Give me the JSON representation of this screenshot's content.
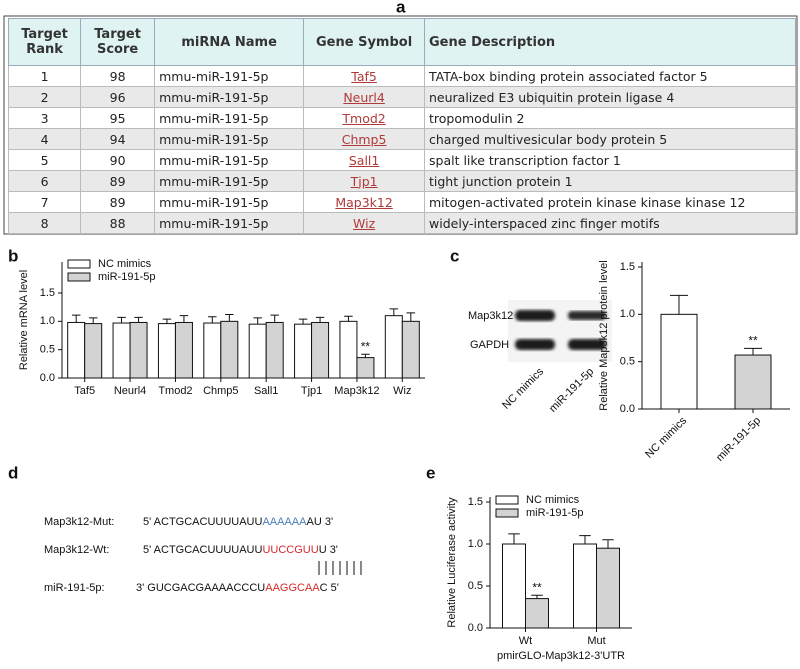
{
  "panel_labels": [
    "a",
    "b",
    "c",
    "d",
    "e"
  ],
  "table": {
    "header": [
      "Target Rank",
      "Target Score",
      "miRNA Name",
      "Gene Symbol",
      "Gene Description"
    ],
    "rows": [
      [
        1,
        98,
        "mmu-miR-191-5p",
        "Taf5",
        "TATA-box binding protein associated factor 5"
      ],
      [
        2,
        96,
        "mmu-miR-191-5p",
        "Neurl4",
        "neuralized E3 ubiquitin protein ligase 4"
      ],
      [
        3,
        95,
        "mmu-miR-191-5p",
        "Tmod2",
        "tropomodulin 2"
      ],
      [
        4,
        94,
        "mmu-miR-191-5p",
        "Chmp5",
        "charged multivesicular body protein 5"
      ],
      [
        5,
        90,
        "mmu-miR-191-5p",
        "Sall1",
        "spalt like transcription factor 1"
      ],
      [
        6,
        89,
        "mmu-miR-191-5p",
        "Tjp1",
        "tight junction protein 1"
      ],
      [
        7,
        89,
        "mmu-miR-191-5p",
        "Map3k12",
        "mitogen-activated protein kinase kinase kinase 12"
      ],
      [
        8,
        88,
        "mmu-miR-191-5p",
        "Wiz",
        "widely-interspaced zinc finger motifs"
      ]
    ]
  },
  "chart_data": [
    {
      "type": "bar",
      "ylabel": "Relative mRNA level",
      "categories": [
        "Taf5",
        "Neurl4",
        "Tmod2",
        "Chmp5",
        "Sall1",
        "Tjp1",
        "Map3k12",
        "Wiz"
      ],
      "series": [
        {
          "name": "NC mimics",
          "color": "#ffffff",
          "values": [
            0.98,
            0.97,
            0.96,
            0.97,
            0.95,
            0.95,
            1.0,
            1.1
          ],
          "errors": [
            0.13,
            0.1,
            0.08,
            0.11,
            0.11,
            0.09,
            0.09,
            0.12
          ]
        },
        {
          "name": "miR-191-5p",
          "color": "#d3d3d3",
          "values": [
            0.96,
            0.98,
            0.98,
            1.0,
            0.98,
            0.98,
            0.36,
            1.0
          ],
          "errors": [
            0.1,
            0.09,
            0.12,
            0.12,
            0.13,
            0.09,
            0.06,
            0.15
          ],
          "significance": [
            null,
            null,
            null,
            null,
            null,
            null,
            "**",
            null
          ]
        }
      ],
      "ylim": [
        0,
        1.5
      ],
      "yticks": [
        {
          "value": 0,
          "label": "0.0"
        },
        {
          "value": 0.5,
          "label": "0.5"
        },
        {
          "value": 1,
          "label": "1.0"
        },
        {
          "value": 1.5,
          "label": "1.5"
        }
      ]
    },
    {
      "type": "bar",
      "ylabel": "Relative Map3k12 protein level",
      "categories": [
        "NC mimics",
        "miR-191-5p"
      ],
      "series": [
        {
          "colors": [
            "#ffffff",
            "#d3d3d3"
          ],
          "values": [
            1.0,
            0.57
          ],
          "errors": [
            0.2,
            0.07
          ],
          "significance": [
            null,
            "**"
          ]
        }
      ],
      "ylim": [
        0,
        1.5
      ],
      "yticks": [
        {
          "value": 0,
          "label": "0.0"
        },
        {
          "value": 0.5,
          "label": "0.5"
        },
        {
          "value": 1,
          "label": "1.0"
        },
        {
          "value": 1.5,
          "label": "1.5"
        }
      ]
    },
    {
      "type": "bar",
      "ylabel": "Relative Luciferase activity",
      "xlabel": "pmirGLO-Map3k12-3'UTR",
      "categories": [
        "Wt",
        "Mut"
      ],
      "series": [
        {
          "name": "NC mimics",
          "color": "#ffffff",
          "values": [
            1.0,
            1.0
          ],
          "errors": [
            0.12,
            0.1
          ]
        },
        {
          "name": "miR-191-5p",
          "color": "#d3d3d3",
          "values": [
            0.35,
            0.95
          ],
          "errors": [
            0.04,
            0.1
          ],
          "significance": [
            "**",
            null
          ]
        }
      ],
      "ylim": [
        0,
        1.5
      ],
      "yticks": [
        {
          "value": 0,
          "label": "0.0"
        },
        {
          "value": 0.5,
          "label": "0.5"
        },
        {
          "value": 1,
          "label": "1.0"
        },
        {
          "value": 1.5,
          "label": "1.5"
        }
      ]
    }
  ],
  "blot": {
    "rows": [
      "Map3k12",
      "GAPDH"
    ],
    "lanes": [
      "NC mimics",
      "miR-191-5p"
    ]
  },
  "sequences": [
    {
      "label": "Map3k12-Mut:",
      "parts": [
        {
          "text": "5' ACTGCACUUUUAUU"
        },
        {
          "text": "AAAAAA",
          "color": "#4a7ebb"
        },
        {
          "text": "AU 3'"
        }
      ]
    },
    {
      "label": "Map3k12-Wt:",
      "parts": [
        {
          "text": "5' ACTGCACUUUUAUU"
        },
        {
          "text": "UUCCGUU",
          "color": "#d42a2a"
        },
        {
          "text": "U 3'"
        }
      ]
    },
    {
      "label": "miR-191-5p:",
      "parts": [
        {
          "text": "3' GUCGACGAAAACCCU"
        },
        {
          "text": "AAGGCAA",
          "color": "#d42a2a"
        },
        {
          "text": "C 5'"
        }
      ]
    }
  ]
}
